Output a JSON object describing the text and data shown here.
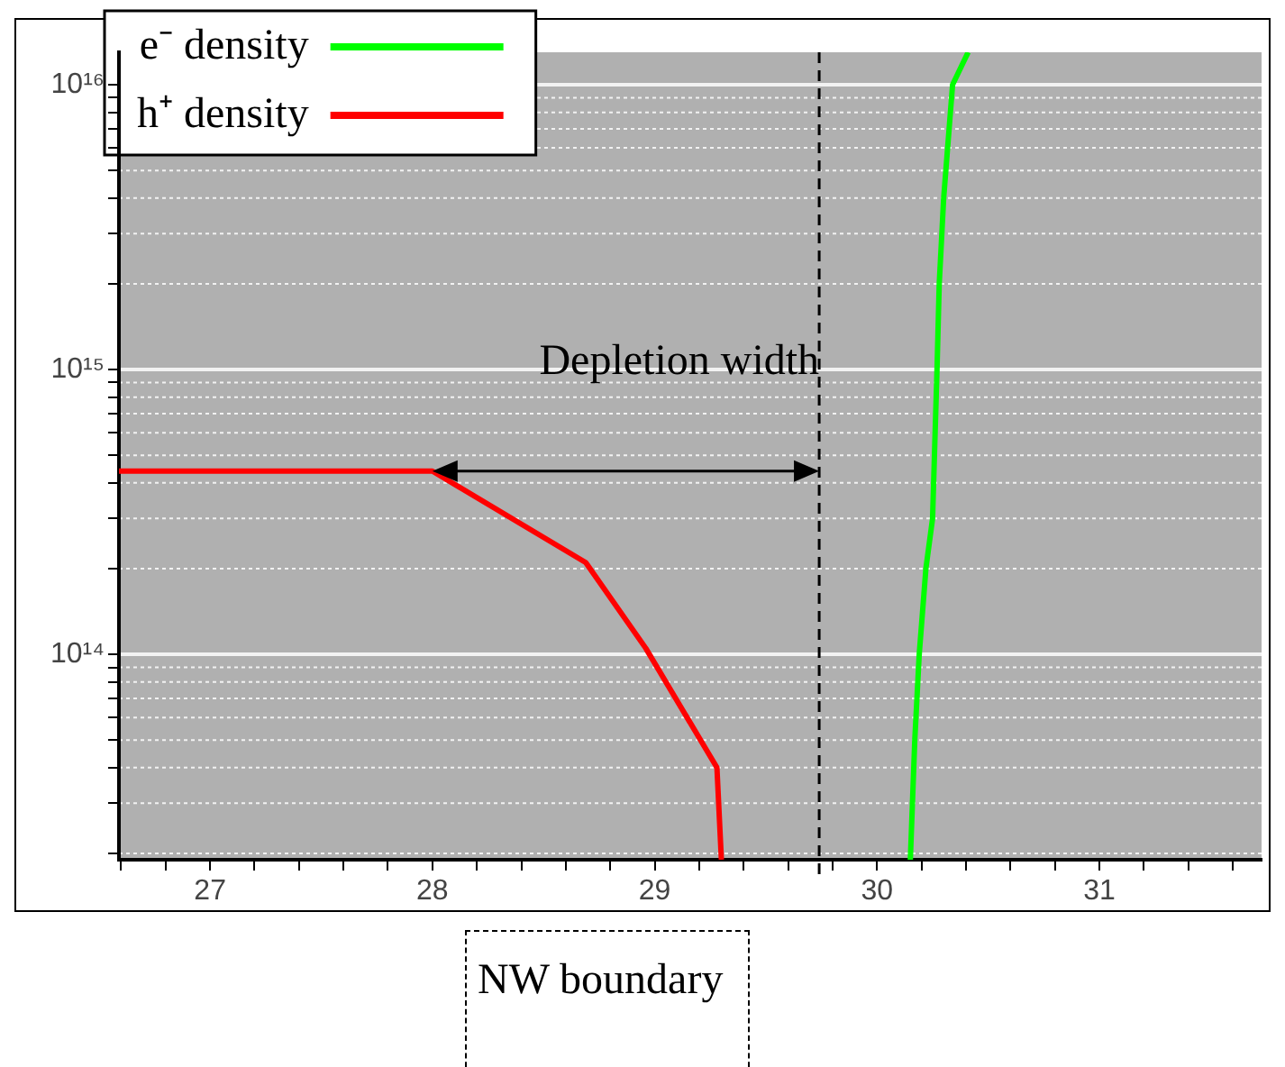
{
  "chart_data": {
    "type": "line",
    "series": [
      {
        "name": "e⁻ density",
        "color": "#00ff00",
        "x": [
          30.15,
          30.17,
          30.19,
          30.22,
          30.25,
          30.27,
          30.28,
          30.3,
          30.34,
          30.41
        ],
        "values": [
          19000000000000.0,
          50000000000000.0,
          100000000000000.0,
          200000000000000.0,
          300000000000000.0,
          1000000000000000.0,
          2000000000000000.0,
          4000000000000000.0,
          1e+16,
          1.3e+16
        ]
      },
      {
        "name": "h⁺ density",
        "color": "#ff0000",
        "x": [
          26.59,
          28,
          28.69,
          28.96,
          29.28,
          29.3
        ],
        "values": [
          440000000000000.0,
          440000000000000.0,
          210000000000000.0,
          105000000000000.0,
          40000000000000.0,
          19000000000000.0
        ]
      }
    ],
    "log": "y",
    "xlim": [
      26.59,
      31.73
    ],
    "ylim": [
      19000000000000.0,
      1.3e+16
    ],
    "xticks": [
      {
        "value": 26.6,
        "label": null
      },
      {
        "value": 26.8,
        "label": null
      },
      27,
      {
        "value": 27.2,
        "label": null
      },
      {
        "value": 27.4,
        "label": null
      },
      {
        "value": 27.6,
        "label": null
      },
      {
        "value": 27.8,
        "label": null
      },
      28,
      {
        "value": 28.2,
        "label": null
      },
      {
        "value": 28.4,
        "label": null
      },
      {
        "value": 28.6,
        "label": null
      },
      {
        "value": 28.8,
        "label": null
      },
      29,
      {
        "value": 29.2,
        "label": null
      },
      {
        "value": 29.4,
        "label": null
      },
      {
        "value": 29.6,
        "label": null
      },
      {
        "value": 29.8,
        "label": null
      },
      30,
      {
        "value": 30.2,
        "label": null
      },
      {
        "value": 30.4,
        "label": null
      },
      {
        "value": 30.6,
        "label": null
      },
      {
        "value": 30.8,
        "label": null
      },
      31,
      {
        "value": 31.2,
        "label": null
      },
      {
        "value": 31.4,
        "label": null
      },
      {
        "value": 31.6,
        "label": null
      }
    ],
    "yticks": [
      {
        "value": 20000000000000.0,
        "label": null
      },
      {
        "value": 30000000000000.0,
        "label": null
      },
      {
        "value": 40000000000000.0,
        "label": null
      },
      {
        "value": 50000000000000.0,
        "label": null
      },
      {
        "value": 60000000000000.0,
        "label": null
      },
      {
        "value": 70000000000000.0,
        "label": null
      },
      {
        "value": 80000000000000.0,
        "label": null
      },
      {
        "value": 90000000000000.0,
        "label": null
      },
      {
        "value": 100000000000000.0,
        "label": "10¹⁴"
      },
      {
        "value": 200000000000000.0,
        "label": null
      },
      {
        "value": 300000000000000.0,
        "label": null
      },
      {
        "value": 400000000000000.0,
        "label": null
      },
      {
        "value": 500000000000000.0,
        "label": null
      },
      {
        "value": 600000000000000.0,
        "label": null
      },
      {
        "value": 700000000000000.0,
        "label": null
      },
      {
        "value": 800000000000000.0,
        "label": null
      },
      {
        "value": 900000000000000.0,
        "label": null
      },
      {
        "value": 1000000000000000.0,
        "label": "10¹⁵"
      },
      {
        "value": 2000000000000000.0,
        "label": null
      },
      {
        "value": 3000000000000000.0,
        "label": null
      },
      {
        "value": 4000000000000000.0,
        "label": null
      },
      {
        "value": 5000000000000000.0,
        "label": null
      },
      {
        "value": 6000000000000000.0,
        "label": null
      },
      {
        "value": 7000000000000000.0,
        "label": null
      },
      {
        "value": 8000000000000000.0,
        "label": null
      },
      {
        "value": 9000000000000000.0,
        "label": null
      },
      {
        "value": 1e+16,
        "label": "10¹⁶"
      }
    ],
    "grid": "y",
    "legend": "top left",
    "marker": "none",
    "line_style": "solid",
    "ref_lines": [
      {
        "axis": "x",
        "value": 29.74,
        "label": "NW boundary",
        "line_style": "dashed",
        "color": "#000000"
      }
    ],
    "annotations": [
      "Depletion width"
    ]
  }
}
